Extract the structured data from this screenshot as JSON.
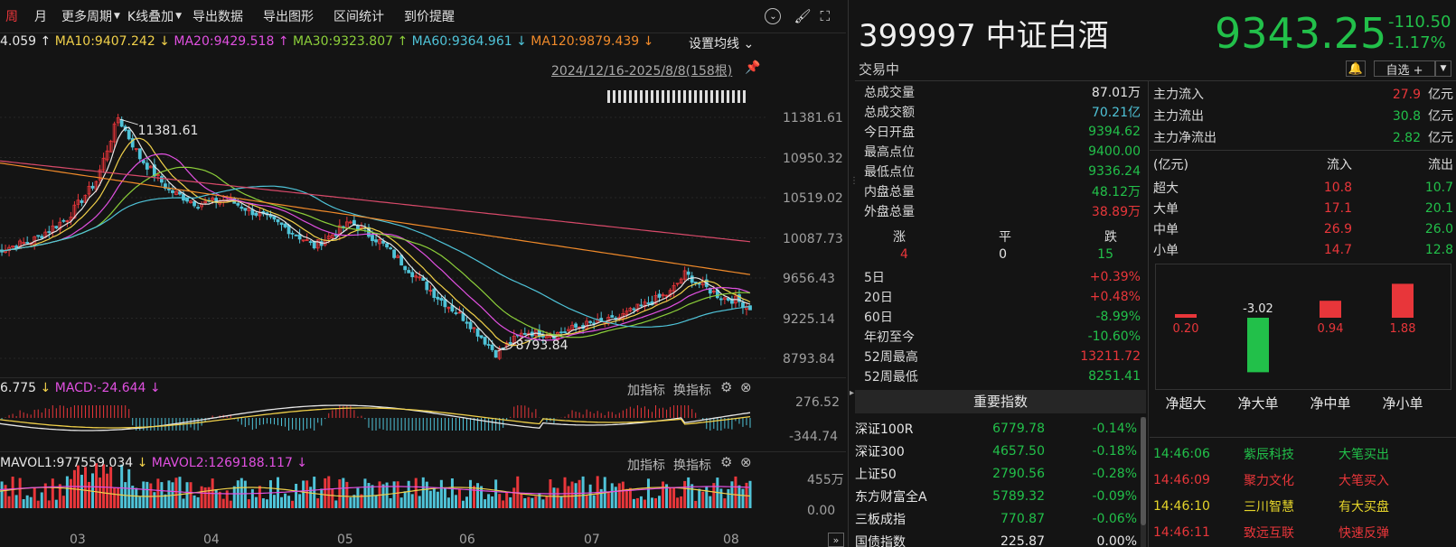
{
  "toolbar": {
    "zhou": "周",
    "yue": "月",
    "more_period": "更多周期",
    "kline_overlay": "K线叠加",
    "export_data": "导出数据",
    "export_chart": "导出图形",
    "interval_stats": "区间统计",
    "price_alert": "到价提醒"
  },
  "ma": {
    "ma5": "4.059",
    "ma10": "MA10:9407.242",
    "ma20": "MA20:9429.518",
    "ma30": "MA30:9323.807",
    "ma60": "MA60:9364.961",
    "ma120": "MA120:9879.439",
    "settings": "设置均线"
  },
  "range": "2024/12/16-2025/8/8(158根)",
  "price_axis": [
    "11381.61",
    "10950.32",
    "10519.02",
    "10087.73",
    "9656.43",
    "9225.14",
    "8793.84"
  ],
  "high_label": "11381.61",
  "low_label": "8793.84",
  "macd": {
    "dif": "6.775",
    "macd": "MACD:-24.644",
    "add": "加指标",
    "swap": "换指标",
    "axis_top": "276.52",
    "axis_bottom": "-344.74"
  },
  "vol": {
    "mavol1": "MAVOL1:977559.034",
    "mavol2": "MAVOL2:1269188.117",
    "add": "加指标",
    "swap": "换指标",
    "axis_top": "455万",
    "axis_bottom": "0.00"
  },
  "months": [
    "03",
    "04",
    "05",
    "06",
    "07",
    "08"
  ],
  "quote": {
    "code": "399997",
    "name": "中证白酒",
    "price": "9343.25",
    "change": "-110.50",
    "pct": "-1.17%",
    "status": "交易中",
    "watch": "自选 +"
  },
  "stats": [
    {
      "label": "总成交量",
      "value": "87.01万",
      "color": "white"
    },
    {
      "label": "总成交额",
      "value": "70.21亿",
      "color": "cyan"
    },
    {
      "label": "今日开盘",
      "value": "9394.62",
      "color": "green"
    },
    {
      "label": "最高点位",
      "value": "9400.00",
      "color": "green"
    },
    {
      "label": "最低点位",
      "value": "9336.24",
      "color": "green"
    },
    {
      "label": "内盘总量",
      "value": "48.12万",
      "color": "green"
    },
    {
      "label": "外盘总量",
      "value": "38.89万",
      "color": "red"
    }
  ],
  "breadth": {
    "up_label": "涨",
    "flat_label": "平",
    "down_label": "跌",
    "up": "4",
    "flat": "0",
    "down": "15"
  },
  "periods": [
    {
      "label": "5日",
      "value": "+0.39%",
      "color": "red"
    },
    {
      "label": "20日",
      "value": "+0.48%",
      "color": "red"
    },
    {
      "label": "60日",
      "value": "-8.99%",
      "color": "green"
    },
    {
      "label": "年初至今",
      "value": "-10.60%",
      "color": "green"
    },
    {
      "label": "52周最高",
      "value": "13211.72",
      "color": "red"
    },
    {
      "label": "52周最低",
      "value": "8251.41",
      "color": "green"
    }
  ],
  "key_index_title": "重要指数",
  "indices": [
    {
      "name": "深证100R",
      "value": "6779.78",
      "pct": "-0.14%"
    },
    {
      "name": "深证300",
      "value": "4657.50",
      "pct": "-0.18%"
    },
    {
      "name": "上证50",
      "value": "2790.56",
      "pct": "-0.28%"
    },
    {
      "name": "东方财富全A",
      "value": "5789.32",
      "pct": "-0.09%"
    },
    {
      "name": "三板成指",
      "value": "770.87",
      "pct": "-0.06%"
    },
    {
      "name": "国债指数",
      "value": "225.87",
      "pct": "0.00%"
    }
  ],
  "main_flow": [
    {
      "label": "主力流入",
      "value": "27.9",
      "unit": "亿元",
      "color": "red"
    },
    {
      "label": "主力流出",
      "value": "30.8",
      "unit": "亿元",
      "color": "green"
    },
    {
      "label": "主力净流出",
      "value": "2.82",
      "unit": "亿元",
      "color": "green"
    }
  ],
  "flow_table": {
    "unit": "(亿元)",
    "in": "流入",
    "out": "流出",
    "rows": [
      {
        "label": "超大",
        "in": "10.8",
        "out": "10.7"
      },
      {
        "label": "大单",
        "in": "17.1",
        "out": "20.1"
      },
      {
        "label": "中单",
        "in": "26.9",
        "out": "26.0"
      },
      {
        "label": "小单",
        "in": "14.7",
        "out": "12.8"
      }
    ]
  },
  "net_chart": {
    "categories": [
      "净超大",
      "净大单",
      "净中单",
      "净小单"
    ],
    "values": [
      0.2,
      -3.02,
      0.94,
      1.88
    ],
    "labels": [
      "0.20",
      "-3.02",
      "0.94",
      "1.88"
    ]
  },
  "trades": [
    {
      "time": "14:46:06",
      "name": "紫辰科技",
      "action": "大笔买出",
      "color": "green"
    },
    {
      "time": "14:46:09",
      "name": "聚力文化",
      "action": "大笔买入",
      "color": "red"
    },
    {
      "time": "14:46:10",
      "name": "三川智慧",
      "action": "有大买盘",
      "color": "yellow"
    },
    {
      "time": "14:46:11",
      "name": "致远互联",
      "action": "快速反弹",
      "color": "red"
    }
  ]
}
